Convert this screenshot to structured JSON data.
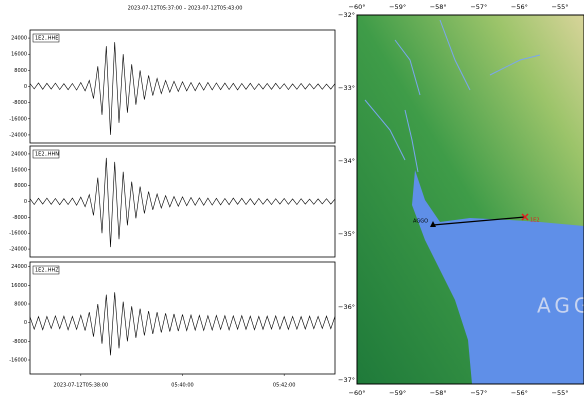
{
  "title": "2023-07-12T05:37:00 – 2023-07-12T05:43:00",
  "chart_data": [
    {
      "type": "waveform",
      "label": "1E2..HHE",
      "color": "#000000",
      "xlim": [
        0,
        360
      ],
      "ylim": [
        -28000,
        28000
      ],
      "yticks": [
        24000,
        16000,
        8000,
        0,
        -8000,
        -16000,
        -24000
      ],
      "values": [
        1500,
        -1200,
        1800,
        -1400,
        1600,
        -1300,
        1700,
        -1500,
        1400,
        -1600,
        1500,
        -1800,
        2000,
        -2200,
        3000,
        -6000,
        10000,
        -14000,
        20000,
        -24000,
        22000,
        -18000,
        16000,
        -13000,
        11000,
        -9000,
        8000,
        -6500,
        5500,
        -4500,
        4000,
        -3500,
        3000,
        -2800,
        2600,
        -2500,
        2400,
        -2200,
        2000,
        -2100,
        1900,
        -1800,
        2000,
        -1700,
        1800,
        -1600,
        1700,
        -1500,
        1600,
        -1700,
        1500,
        -1400,
        1600,
        -1500,
        1400,
        -1300,
        1500,
        -1400,
        1600,
        -1200,
        1400,
        -1500,
        1300,
        -1400,
        1500,
        -1300,
        1400,
        -1200,
        1300,
        -1400,
        1200,
        -1300,
        1400
      ]
    },
    {
      "type": "waveform",
      "label": "1E2..HHN",
      "color": "#000000",
      "xlim": [
        0,
        360
      ],
      "ylim": [
        -28000,
        28000
      ],
      "yticks": [
        24000,
        16000,
        8000,
        0,
        -8000,
        -16000,
        -24000
      ],
      "values": [
        1400,
        -1500,
        1600,
        -1300,
        1700,
        -1400,
        1500,
        -1600,
        1400,
        -1500,
        1700,
        -1900,
        2200,
        -2600,
        3500,
        -7000,
        12000,
        -16000,
        22000,
        -23000,
        20000,
        -19000,
        15000,
        -12000,
        10000,
        -8500,
        7500,
        -6000,
        5000,
        -4200,
        3800,
        -3300,
        3000,
        -2700,
        2500,
        -2400,
        2300,
        -2100,
        2000,
        -1900,
        1800,
        -1900,
        1700,
        -1800,
        1600,
        -1700,
        1500,
        -1600,
        1700,
        -1400,
        1600,
        -1500,
        1400,
        -1600,
        1500,
        -1400,
        1300,
        -1500,
        1400,
        -1300,
        1500,
        -1400,
        1300,
        -1500,
        1400,
        -1300,
        1200,
        -1400,
        1300,
        -1200,
        1400,
        -1300,
        1200
      ]
    },
    {
      "type": "waveform",
      "label": "1E2..HHZ",
      "color": "#000000",
      "xlim": [
        0,
        360
      ],
      "ylim": [
        -22000,
        26000
      ],
      "yticks": [
        24000,
        16000,
        8000,
        0,
        -8000,
        -16000
      ],
      "xticks": [
        {
          "value": 60,
          "label": "2023-07-12T05:38:00"
        },
        {
          "value": 180,
          "label": "05:40:00"
        },
        {
          "value": 300,
          "label": "05:42:00"
        }
      ],
      "values": [
        2500,
        -2800,
        2600,
        -3000,
        2700,
        -2500,
        2900,
        -2600,
        2800,
        -3100,
        2700,
        -2900,
        3200,
        -3400,
        4500,
        -6000,
        8000,
        -9000,
        12000,
        -14000,
        13000,
        -11000,
        9000,
        -8000,
        7000,
        -6500,
        6000,
        -5500,
        5000,
        -4800,
        4500,
        -4200,
        4000,
        -3800,
        3700,
        -3600,
        3500,
        -3400,
        3300,
        -3200,
        3100,
        -3300,
        3000,
        -3200,
        3100,
        -2900,
        3000,
        -3100,
        2900,
        -2800,
        3000,
        -2900,
        2800,
        -3000,
        2700,
        -2900,
        2800,
        -2700,
        2900,
        -2800,
        2600,
        -2900,
        2700,
        -2800,
        2600,
        -2700,
        2800,
        -2600,
        2700,
        -2500,
        2800,
        -2600,
        2700
      ]
    }
  ],
  "map": {
    "xtick_labels": [
      "−60°",
      "−59°",
      "−58°",
      "−57°",
      "−56°",
      "−55°"
    ],
    "ytick_labels": [
      "−32°",
      "−33°",
      "−34°",
      "−35°",
      "−36°",
      "−37°"
    ],
    "station": "AGGO",
    "event_label": "1E2",
    "watermark": "AGG"
  }
}
